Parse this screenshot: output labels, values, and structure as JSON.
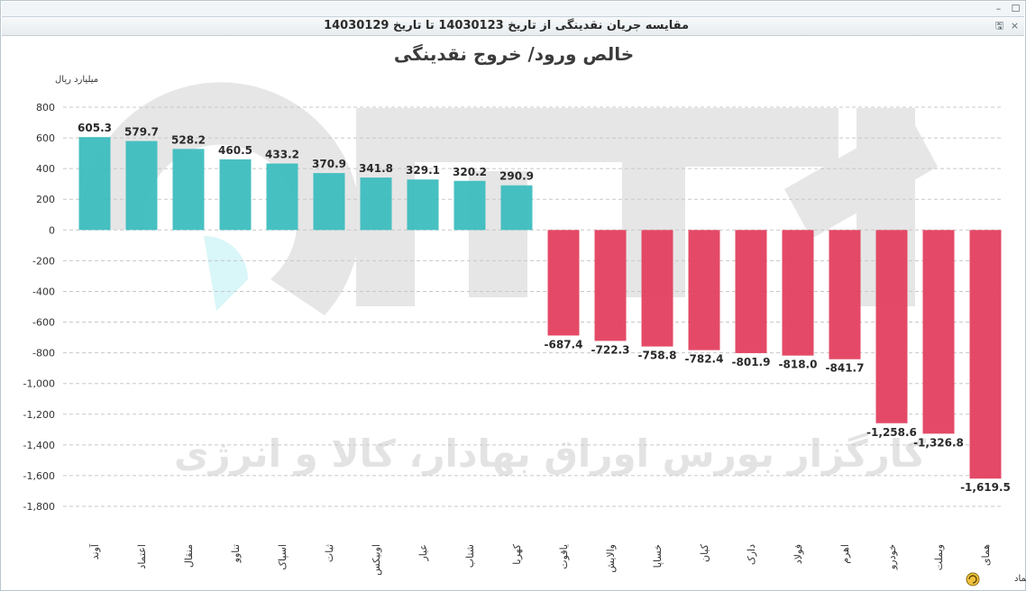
{
  "window": {
    "title": "مقایسه جریان نقدینگی از تاریخ 14030123 تا تاریخ 14030129",
    "minimize_glyph": "–",
    "maximize_glyph": "☐",
    "export_icon": "export-icon",
    "close_chart_icon": "close-chart-icon"
  },
  "watermark": {
    "text": "کارگزار بورس اوراق بهادار، کالا و انرژی"
  },
  "chart_data": {
    "type": "bar",
    "title": "خالص ورود/ خروج نقدینگی",
    "ylabel": "میلیارد ریال",
    "xlabel": "نماد",
    "ylim": [
      -1800,
      800
    ],
    "yticks": [
      800,
      600,
      400,
      200,
      0,
      -200,
      -400,
      -600,
      -800,
      -1000,
      -1200,
      -1400,
      -1600,
      -1800
    ],
    "ytick_labels": [
      "800",
      "600",
      "400",
      "200",
      "0",
      "-200",
      "-400",
      "-600",
      "-800",
      "-1,000",
      "-1,200",
      "-1,400",
      "-1,600",
      "-1,800"
    ],
    "grid": true,
    "categories": [
      "آوند",
      "اعتماد",
      "منقال",
      "تناوو",
      "اسپاک",
      "ثبات",
      "اوبیکس",
      "عیار",
      "شتاب",
      "کهربا",
      "یاقوت",
      "والایش",
      "خساپا",
      "کیان",
      "دارک",
      "فولاد",
      "اهرم",
      "خودرو",
      "وبملت",
      "همای"
    ],
    "values": [
      605.3,
      579.7,
      528.2,
      460.5,
      433.2,
      370.9,
      341.8,
      329.1,
      320.2,
      290.9,
      -687.4,
      -722.3,
      -758.8,
      -782.4,
      -801.9,
      -818.0,
      -841.7,
      -1258.6,
      -1326.8,
      -1619.5
    ],
    "value_labels": [
      "605.3",
      "579.7",
      "528.2",
      "460.5",
      "433.2",
      "370.9",
      "341.8",
      "329.1",
      "320.2",
      "290.9",
      "-687.4",
      "-722.3",
      "-758.8",
      "-782.4",
      "-801.9",
      "-818.0",
      "-841.7",
      "-1,258.6",
      "-1,326.8",
      "-1,619.5"
    ],
    "colors": {
      "positive": "#3dbdbf",
      "negative": "#e3405f",
      "grid": "#c8c8c8"
    }
  }
}
